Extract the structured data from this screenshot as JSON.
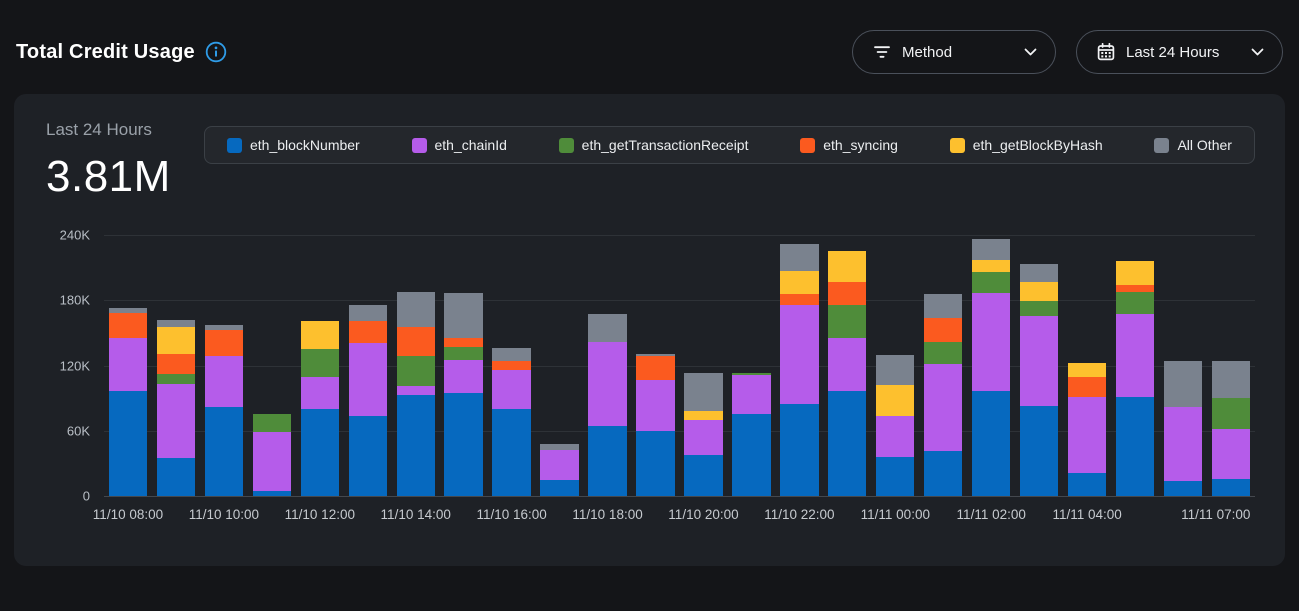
{
  "header": {
    "title": "Total Credit Usage"
  },
  "controls": {
    "method_dropdown": {
      "label": "Method"
    },
    "time_range_dropdown": {
      "label": "Last 24 Hours"
    }
  },
  "summary": {
    "period_label": "Last 24 Hours",
    "total": "3.81M"
  },
  "colors": {
    "page_bg": "#141518",
    "card_bg": "#1e2126",
    "legend_border": "#3b4046",
    "gridline": "#2e3237",
    "axis_line": "#44484e",
    "info_accent": "#2f9ce8",
    "eth_blockNumber": "#0669bf",
    "eth_chainId": "#b55cea",
    "eth_getTransactionReceipt": "#4f8c3a",
    "eth_syncing": "#fb5a1f",
    "eth_getBlockByHash": "#fdc02e",
    "all_other": "#7a828e"
  },
  "chart_data": {
    "type": "bar",
    "stacked": true,
    "title": "Total Credit Usage - Last 24 Hours",
    "values_unit": "thousands of credits (K)",
    "ylim_thousands": [
      0,
      240
    ],
    "grid": true,
    "legend_position": "top",
    "bar_count": 24,
    "yticks": [
      {
        "value_k": 0,
        "label": "0"
      },
      {
        "value_k": 60,
        "label": "60K"
      },
      {
        "value_k": 120,
        "label": "120K"
      },
      {
        "value_k": 180,
        "label": "180K"
      },
      {
        "value_k": 240,
        "label": "240K"
      }
    ],
    "x_tick_labels": [
      {
        "bar_index": 0,
        "label": "11/10 08:00"
      },
      {
        "bar_index": 2,
        "label": "11/10 10:00"
      },
      {
        "bar_index": 4,
        "label": "11/10 12:00"
      },
      {
        "bar_index": 6,
        "label": "11/10 14:00"
      },
      {
        "bar_index": 8,
        "label": "11/10 16:00"
      },
      {
        "bar_index": 10,
        "label": "11/10 18:00"
      },
      {
        "bar_index": 12,
        "label": "11/10 20:00"
      },
      {
        "bar_index": 14,
        "label": "11/10 22:00"
      },
      {
        "bar_index": 16,
        "label": "11/11 00:00"
      },
      {
        "bar_index": 18,
        "label": "11/11 02:00"
      },
      {
        "bar_index": 20,
        "label": "11/11 04:00"
      },
      {
        "bar_index": 23,
        "label": "11/11 07:00"
      }
    ],
    "series": [
      {
        "name": "eth_blockNumber",
        "color": "#0669bf",
        "values": [
          97,
          35,
          82,
          5,
          80,
          74,
          93,
          95,
          80,
          15,
          64,
          60,
          38,
          75,
          85,
          97,
          36,
          41,
          97,
          83,
          21,
          91,
          14,
          16
        ]
      },
      {
        "name": "eth_chainId",
        "color": "#b55cea",
        "values": [
          48,
          68,
          47,
          54,
          29,
          67,
          8,
          30,
          36,
          27,
          78,
          47,
          32,
          36,
          91,
          48,
          38,
          80,
          90,
          83,
          70,
          76,
          68,
          46
        ]
      },
      {
        "name": "eth_getTransactionReceipt",
        "color": "#4f8c3a",
        "values": [
          0,
          9,
          0,
          16,
          26,
          0,
          28,
          12,
          0,
          0,
          0,
          0,
          0,
          2,
          0,
          31,
          0,
          21,
          19,
          13,
          0,
          21,
          0,
          28
        ]
      },
      {
        "name": "eth_syncing",
        "color": "#fb5a1f",
        "values": [
          23,
          19,
          24,
          0,
          0,
          20,
          26,
          8,
          8,
          0,
          0,
          22,
          0,
          0,
          10,
          21,
          0,
          22,
          0,
          0,
          18,
          6,
          0,
          0
        ]
      },
      {
        "name": "eth_getBlockByHash",
        "color": "#fdc02e",
        "values": [
          0,
          24,
          0,
          0,
          26,
          0,
          0,
          0,
          0,
          0,
          0,
          0,
          8,
          0,
          21,
          28,
          28,
          0,
          11,
          18,
          13,
          22,
          0,
          0
        ]
      },
      {
        "name": "All Other",
        "color": "#7a828e",
        "values": [
          5,
          7,
          4,
          0,
          0,
          15,
          33,
          42,
          12,
          6,
          25,
          2,
          35,
          0,
          25,
          0,
          28,
          22,
          19,
          16,
          0,
          0,
          42,
          34
        ]
      }
    ]
  }
}
